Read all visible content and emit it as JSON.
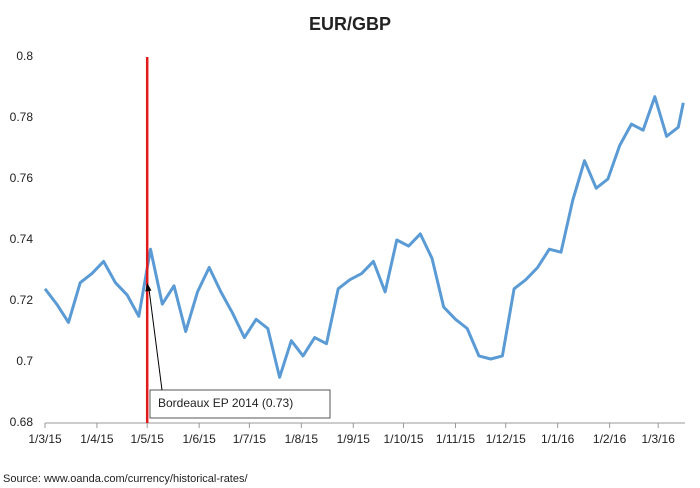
{
  "chart_data": {
    "type": "line",
    "title": "EUR/GBP",
    "color": "#5b9bd5",
    "x": [
      "2015-03-01",
      "2015-03-08",
      "2015-03-15",
      "2015-03-22",
      "2015-03-29",
      "2015-04-05",
      "2015-04-12",
      "2015-04-19",
      "2015-04-26",
      "2015-05-03",
      "2015-05-10",
      "2015-05-17",
      "2015-05-24",
      "2015-05-31",
      "2015-06-07",
      "2015-06-14",
      "2015-06-21",
      "2015-06-28",
      "2015-07-05",
      "2015-07-12",
      "2015-07-19",
      "2015-07-26",
      "2015-08-02",
      "2015-08-09",
      "2015-08-16",
      "2015-08-23",
      "2015-08-30",
      "2015-09-06",
      "2015-09-13",
      "2015-09-20",
      "2015-09-27",
      "2015-10-04",
      "2015-10-11",
      "2015-10-18",
      "2015-10-25",
      "2015-11-01",
      "2015-11-08",
      "2015-11-15",
      "2015-11-22",
      "2015-11-29",
      "2015-12-06",
      "2015-12-13",
      "2015-12-20",
      "2015-12-27",
      "2016-01-03",
      "2016-01-10",
      "2016-01-17",
      "2016-01-24",
      "2016-01-31",
      "2016-02-07",
      "2016-02-14",
      "2016-02-21",
      "2016-02-28",
      "2016-03-06",
      "2016-03-13",
      "2016-03-16"
    ],
    "values": [
      0.724,
      0.719,
      0.713,
      0.726,
      0.729,
      0.733,
      0.726,
      0.722,
      0.715,
      0.737,
      0.719,
      0.725,
      0.71,
      0.723,
      0.731,
      0.723,
      0.716,
      0.708,
      0.714,
      0.711,
      0.695,
      0.707,
      0.702,
      0.708,
      0.706,
      0.724,
      0.727,
      0.729,
      0.733,
      0.723,
      0.74,
      0.738,
      0.742,
      0.734,
      0.718,
      0.714,
      0.711,
      0.702,
      0.701,
      0.702,
      0.724,
      0.727,
      0.731,
      0.737,
      0.736,
      0.753,
      0.766,
      0.757,
      0.76,
      0.771,
      0.778,
      0.776,
      0.787,
      0.774,
      0.777,
      0.785
    ],
    "xlim": [
      "2015-03-01",
      "2016-03-17"
    ],
    "xticks": [
      {
        "value": "2015-03-01",
        "label": "1/3/15"
      },
      {
        "value": "2015-04-01",
        "label": "1/4/15"
      },
      {
        "value": "2015-05-01",
        "label": "1/5/15"
      },
      {
        "value": "2015-06-01",
        "label": "1/6/15"
      },
      {
        "value": "2015-07-01",
        "label": "1/7/15"
      },
      {
        "value": "2015-08-01",
        "label": "1/8/15"
      },
      {
        "value": "2015-09-01",
        "label": "1/9/15"
      },
      {
        "value": "2015-10-01",
        "label": "1/10/15"
      },
      {
        "value": "2015-11-01",
        "label": "1/11/15"
      },
      {
        "value": "2015-12-01",
        "label": "1/12/15"
      },
      {
        "value": "2016-01-01",
        "label": "1/1/16"
      },
      {
        "value": "2016-02-01",
        "label": "1/2/16"
      },
      {
        "value": "2016-03-01",
        "label": "1/3/16"
      }
    ],
    "ylim": [
      0.68,
      0.8
    ],
    "yticks": [
      0.68,
      0.7,
      0.72,
      0.74,
      0.76,
      0.78,
      0.8
    ],
    "grid": false,
    "annotation": {
      "text": "Bordeaux EP 2014 (0.73)",
      "x": "2015-05-01",
      "y": 0.726,
      "color": "#e31a1c"
    },
    "source": "Source: www.oanda.com/currency/historical-rates/"
  }
}
